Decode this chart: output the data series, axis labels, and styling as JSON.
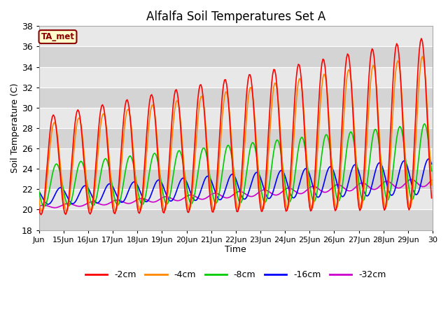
{
  "title": "Alfalfa Soil Temperatures Set A",
  "xlabel": "Time",
  "ylabel": "Soil Temperature (C)",
  "ylim": [
    18,
    38
  ],
  "yticks": [
    18,
    20,
    22,
    24,
    26,
    28,
    30,
    32,
    34,
    36,
    38
  ],
  "fig_bg": "#ffffff",
  "plot_bg": "#e8e8e8",
  "grid_color": "#ffffff",
  "annotation_text": "TA_met",
  "annotation_color": "#8b0000",
  "annotation_bg": "#ffffcc",
  "xtick_labels": [
    "Jun",
    "15Jun",
    "16Jun",
    "17Jun",
    "18Jun",
    "19Jun",
    "20Jun",
    "21Jun",
    "22Jun",
    "23Jun",
    "24Jun",
    "25Jun",
    "26Jun",
    "27Jun",
    "28Jun",
    "29Jun",
    "30"
  ],
  "legend_order": [
    "-2cm",
    "-4cm",
    "-8cm",
    "-16cm",
    "-32cm"
  ],
  "legend_colors": [
    "#ff0000",
    "#ff8800",
    "#00cc00",
    "#0000ff",
    "#cc00cc"
  ]
}
